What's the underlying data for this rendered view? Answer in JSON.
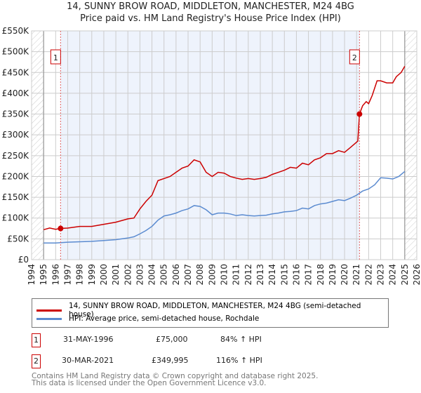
{
  "chart_data": {
    "type": "line",
    "title": "14, SUNNY BROW ROAD, MIDDLETON, MANCHESTER, M24 4BG",
    "subtitle": "Price paid vs. HM Land Registry's House Price Index (HPI)",
    "xlim": [
      1994,
      2026
    ],
    "ylim": [
      0,
      550000
    ],
    "xticks": [
      "1994",
      "1995",
      "1996",
      "1997",
      "1998",
      "1999",
      "2000",
      "2001",
      "2002",
      "2003",
      "2004",
      "2005",
      "2006",
      "2007",
      "2008",
      "2009",
      "2010",
      "2011",
      "2012",
      "2013",
      "2014",
      "2015",
      "2016",
      "2017",
      "2018",
      "2019",
      "2020",
      "2021",
      "2022",
      "2023",
      "2024",
      "2025",
      "2026"
    ],
    "yticks": [
      {
        "v": 0,
        "l": "£0"
      },
      {
        "v": 50000,
        "l": "£50K"
      },
      {
        "v": 100000,
        "l": "£100K"
      },
      {
        "v": 150000,
        "l": "£150K"
      },
      {
        "v": 200000,
        "l": "£200K"
      },
      {
        "v": 250000,
        "l": "£250K"
      },
      {
        "v": 300000,
        "l": "£300K"
      },
      {
        "v": 350000,
        "l": "£350K"
      },
      {
        "v": 400000,
        "l": "£400K"
      },
      {
        "v": 450000,
        "l": "£450K"
      },
      {
        "v": 500000,
        "l": "£500K"
      },
      {
        "v": 550000,
        "l": "£550K"
      }
    ],
    "grid": true,
    "series": [
      {
        "name": "14, SUNNY BROW ROAD, MIDDLETON, MANCHESTER, M24 4BG (semi-detached house)",
        "color": "#cc0000",
        "x": [
          1995,
          1995.5,
          1996,
          1996.41,
          1997,
          1998,
          1999,
          2000,
          2001,
          2002,
          2002.5,
          2003,
          2003.5,
          2004,
          2004.5,
          2005,
          2005.5,
          2006,
          2006.5,
          2007,
          2007.5,
          2008,
          2008.5,
          2009,
          2009.5,
          2010,
          2010.5,
          2011,
          2011.5,
          2012,
          2012.5,
          2013,
          2013.5,
          2014,
          2014.5,
          2015,
          2015.5,
          2016,
          2016.5,
          2017,
          2017.5,
          2018,
          2018.5,
          2019,
          2019.5,
          2020,
          2020.5,
          2021.1,
          2021.24,
          2021.5,
          2021.8,
          2022,
          2022.3,
          2022.7,
          2023,
          2023.5,
          2024,
          2024.3,
          2024.7,
          2025
        ],
        "y": [
          72000,
          76000,
          73000,
          75000,
          76000,
          80000,
          80000,
          85000,
          90000,
          98000,
          100000,
          122000,
          140000,
          155000,
          190000,
          195000,
          200000,
          210000,
          220000,
          225000,
          240000,
          235000,
          210000,
          200000,
          210000,
          208000,
          200000,
          196000,
          193000,
          195000,
          193000,
          195000,
          198000,
          205000,
          210000,
          215000,
          222000,
          220000,
          232000,
          228000,
          240000,
          245000,
          255000,
          255000,
          262000,
          258000,
          270000,
          285000,
          349995,
          370000,
          380000,
          375000,
          395000,
          430000,
          430000,
          425000,
          425000,
          440000,
          450000,
          465000
        ]
      },
      {
        "name": "HPI: Average price, semi-detached house, Rochdale",
        "color": "#5b8bd0",
        "x": [
          1995,
          1996,
          1997,
          1998,
          1999,
          2000,
          2001,
          2002,
          2002.5,
          2003,
          2003.5,
          2004,
          2004.5,
          2005,
          2005.5,
          2006,
          2006.5,
          2007,
          2007.5,
          2008,
          2008.5,
          2009,
          2009.5,
          2010,
          2010.5,
          2011,
          2011.5,
          2012,
          2012.5,
          2013,
          2013.5,
          2014,
          2014.5,
          2015,
          2015.5,
          2016,
          2016.5,
          2017,
          2017.5,
          2018,
          2018.5,
          2019,
          2019.5,
          2020,
          2020.5,
          2021,
          2021.5,
          2022,
          2022.5,
          2023,
          2023.5,
          2024,
          2024.5,
          2025
        ],
        "y": [
          40000,
          40000,
          42000,
          43000,
          44000,
          46000,
          48000,
          52000,
          55000,
          62000,
          70000,
          80000,
          95000,
          105000,
          108000,
          112000,
          118000,
          122000,
          130000,
          128000,
          120000,
          108000,
          112000,
          112000,
          110000,
          106000,
          108000,
          106000,
          105000,
          106000,
          107000,
          110000,
          112000,
          115000,
          116000,
          118000,
          124000,
          122000,
          130000,
          134000,
          136000,
          140000,
          144000,
          142000,
          148000,
          155000,
          165000,
          170000,
          180000,
          197000,
          196000,
          194000,
          200000,
          212000
        ]
      }
    ],
    "annotations": [
      {
        "label": "1",
        "x": 1996.41,
        "y": 75000
      },
      {
        "label": "2",
        "x": 2021.24,
        "y": 349995
      }
    ]
  },
  "legend": {
    "items": [
      "14, SUNNY BROW ROAD, MIDDLETON, MANCHESTER, M24 4BG (semi-detached house)",
      "HPI: Average price, semi-detached house, Rochdale"
    ]
  },
  "sales": [
    {
      "num": "1",
      "date": "31-MAY-1996",
      "price": "£75,000",
      "hpi": "84% ↑ HPI"
    },
    {
      "num": "2",
      "date": "30-MAR-2021",
      "price": "£349,995",
      "hpi": "116% ↑ HPI"
    }
  ],
  "footer": {
    "line1": "Contains HM Land Registry data © Crown copyright and database right 2025.",
    "line2": "This data is licensed under the Open Government Licence v3.0."
  }
}
